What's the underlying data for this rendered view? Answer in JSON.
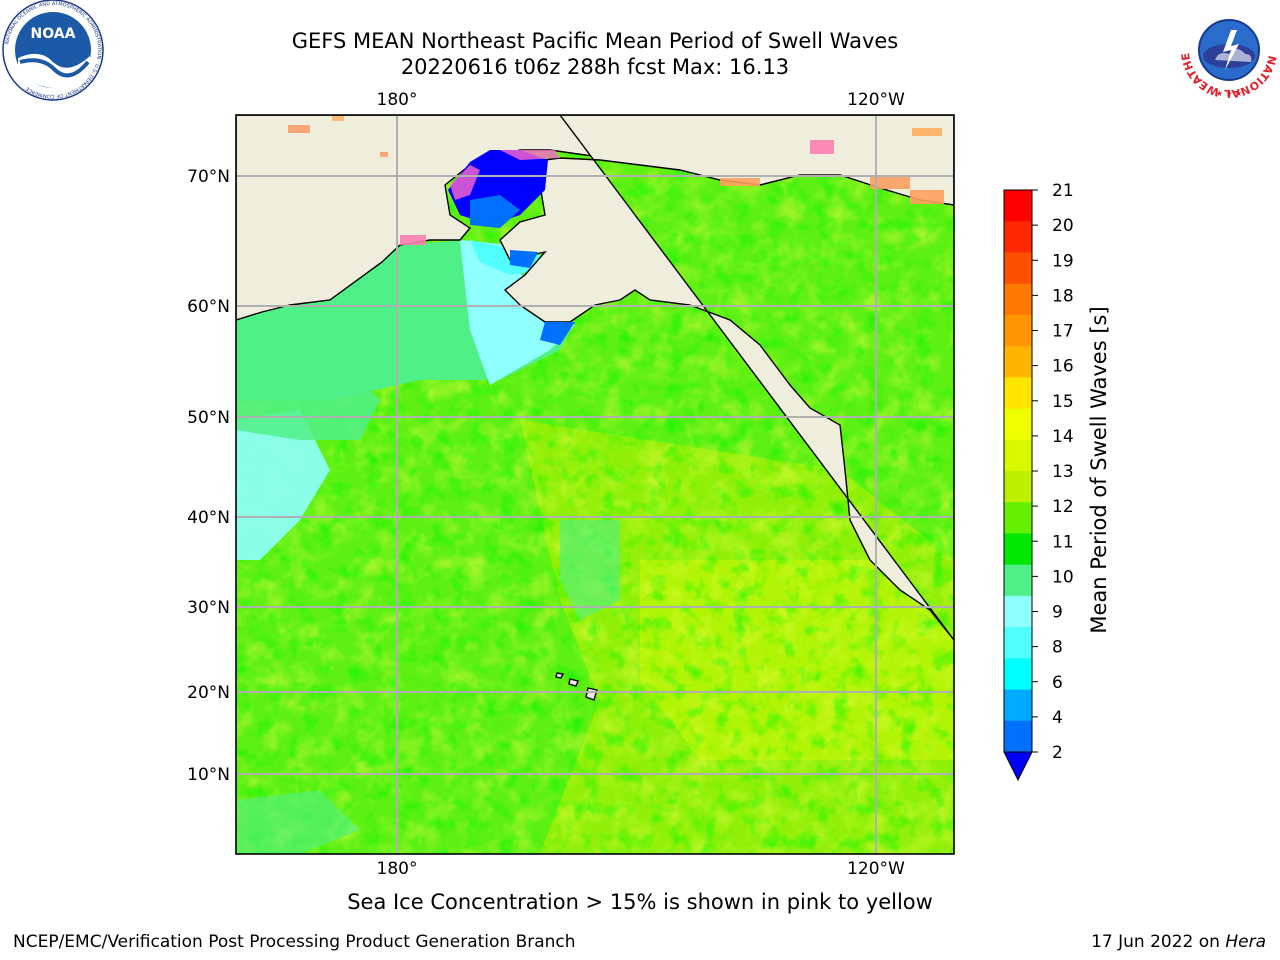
{
  "header": {
    "title_line1": "GEFS MEAN Northeast Pacific Mean Period of Swell Waves",
    "title_line2": "20220616 t06z 288h fcst   Max: 16.13"
  },
  "logos": {
    "left": {
      "name": "noaa-logo",
      "text": "NOAA",
      "ring_text": "NATIONAL OCEANIC AND ATMOSPHERIC ADMINISTRATION · U.S. DEPARTMENT OF COMMERCE"
    },
    "right": {
      "name": "nws-logo",
      "ring_text": "NATIONAL WEATHER SERVICE"
    }
  },
  "map": {
    "lon_labels": [
      "180°",
      "120°W"
    ],
    "lat_labels": [
      "70°N",
      "60°N",
      "50°N",
      "40°N",
      "30°N",
      "20°N",
      "10°N"
    ],
    "colors": {
      "land": "#efeddc",
      "ocean_main": "#5ef012",
      "frame": "#000000",
      "grid": "#b0b0b0"
    }
  },
  "colorbar": {
    "label": "Mean Period of Swell Waves [s]",
    "ticks": [
      "21",
      "20",
      "19",
      "18",
      "17",
      "16",
      "15",
      "14",
      "13",
      "12",
      "11",
      "10",
      "9",
      "8",
      "6",
      "4",
      "2"
    ],
    "colors_top_to_bottom": [
      "#ff0000",
      "#ff2800",
      "#ff5000",
      "#ff7800",
      "#ff9600",
      "#ffb400",
      "#ffe600",
      "#f0ff00",
      "#d8f800",
      "#bef000",
      "#64f000",
      "#00e800",
      "#50f088",
      "#90ffff",
      "#50ffff",
      "#00ffff",
      "#00aaff",
      "#0070ff"
    ],
    "under_color": "#0000ff"
  },
  "notes": {
    "sea_ice": "Sea Ice Concentration > 15% is shown in pink to yellow"
  },
  "footer": {
    "left": "NCEP/EMC/Verification Post Processing Product Generation Branch",
    "right_prefix": "17 Jun 2022 on ",
    "right_italic": "Hera"
  }
}
